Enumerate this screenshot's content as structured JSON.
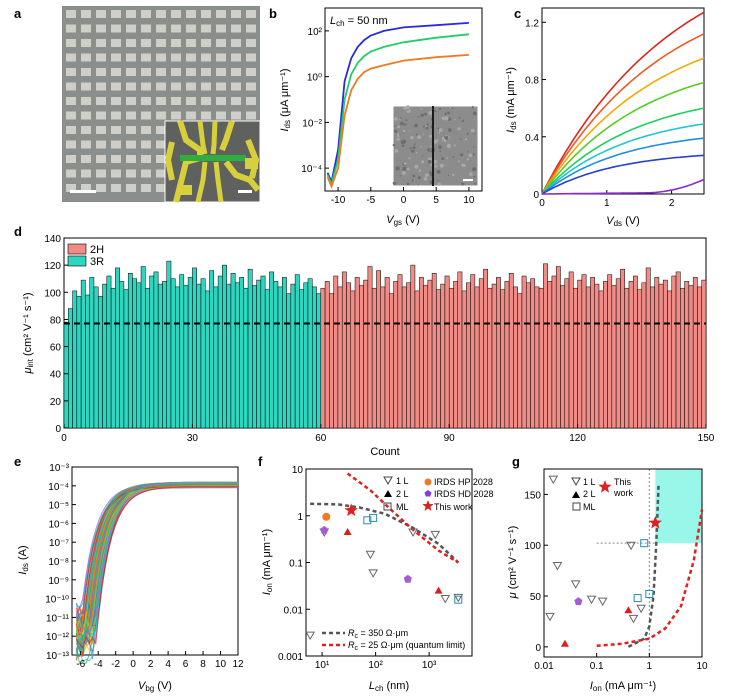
{
  "panels": {
    "a": {
      "label": "a"
    },
    "b": {
      "label": "b",
      "annotation_prefix": "L",
      "annotation_sub": "ch",
      "annotation_suffix": " = 50 nm",
      "xlabel": "V",
      "xlabel_sub": "gs",
      "xlabel_unit": " (V)",
      "ylabel": "I",
      "ylabel_sub": "ds",
      "ylabel_unit": " (μA μm⁻¹)"
    },
    "c": {
      "label": "c",
      "xlabel": "V",
      "xlabel_sub": "ds",
      "xlabel_unit": " (V)",
      "ylabel": "I",
      "ylabel_sub": "ds",
      "ylabel_unit": " (mA μm⁻¹)"
    },
    "d": {
      "label": "d",
      "xlabel": "Count",
      "ylabel": "μ",
      "ylabel_sub": "int",
      "ylabel_unit": " (cm² V⁻¹ s⁻¹)",
      "legend": [
        "2H",
        "3R"
      ]
    },
    "e": {
      "label": "e",
      "xlabel": "V",
      "xlabel_sub": "bg",
      "xlabel_unit": " (V)",
      "ylabel": "I",
      "ylabel_sub": "ds",
      "ylabel_unit": " (A)"
    },
    "f": {
      "label": "f",
      "xlabel": "L",
      "xlabel_sub": "ch",
      "xlabel_unit": " (nm)",
      "ylabel": "I",
      "ylabel_sub": "on",
      "ylabel_unit": " (mA μm⁻¹)",
      "legend": [
        "1 L",
        "2 L",
        "ML",
        "IRDS HP 2028",
        "IRDS HD 2028",
        "This work"
      ],
      "line_legend": [
        {
          "prefix": "R",
          "sub": "c",
          "text": " = 350 Ω·μm"
        },
        {
          "prefix": "R",
          "sub": "c",
          "text": " = 25 Ω·μm (quantum limit)"
        }
      ]
    },
    "g": {
      "label": "g",
      "xlabel": "I",
      "xlabel_sub": "on",
      "xlabel_unit": " (mA μm⁻¹)",
      "ylabel": "μ",
      "ylabel_unit": " (cm² V⁻¹ s⁻¹)",
      "legend": [
        "1 L",
        "2 L",
        "ML",
        "This",
        "work"
      ]
    }
  },
  "chart_data": [
    {
      "panel": "b",
      "type": "line",
      "xlim": [
        -12,
        12
      ],
      "ylim_log10": [
        -5,
        3
      ],
      "y_scale": "log",
      "x_ticks": [
        "-10",
        "-5",
        "0",
        "5",
        "10"
      ],
      "y_ticks": [
        "10⁻⁴",
        "10⁻²",
        "10⁰",
        "10²"
      ],
      "series": [
        {
          "color": "#2b2bd9",
          "points": [
            [
              -11.6,
              -4.2
            ],
            [
              -11,
              -4.6
            ],
            [
              -10,
              -3.2
            ],
            [
              -9,
              -0.2
            ],
            [
              -8,
              0.8
            ],
            [
              -7,
              1.3
            ],
            [
              -6,
              1.6
            ],
            [
              -5,
              1.8
            ],
            [
              -3,
              2.0
            ],
            [
              0,
              2.15
            ],
            [
              5,
              2.25
            ],
            [
              10,
              2.35
            ]
          ]
        },
        {
          "color": "#22cc66",
          "points": [
            [
              -11.6,
              -4.3
            ],
            [
              -11,
              -4.7
            ],
            [
              -10,
              -3.6
            ],
            [
              -9,
              -1.0
            ],
            [
              -8,
              0.1
            ],
            [
              -7,
              0.6
            ],
            [
              -6,
              0.9
            ],
            [
              -5,
              1.1
            ],
            [
              -3,
              1.3
            ],
            [
              0,
              1.5
            ],
            [
              5,
              1.7
            ],
            [
              10,
              1.85
            ]
          ]
        },
        {
          "color": "#f07a20",
          "points": [
            [
              -11.6,
              -4.4
            ],
            [
              -11,
              -4.8
            ],
            [
              -10,
              -4.0
            ],
            [
              -9,
              -1.7
            ],
            [
              -8,
              -0.6
            ],
            [
              -7,
              -0.1
            ],
            [
              -6,
              0.2
            ],
            [
              -5,
              0.35
            ],
            [
              -3,
              0.5
            ],
            [
              0,
              0.7
            ],
            [
              5,
              0.85
            ],
            [
              10,
              0.95
            ]
          ]
        }
      ]
    },
    {
      "panel": "c",
      "type": "line",
      "xlim": [
        0,
        2.5
      ],
      "ylim": [
        0,
        1.3
      ],
      "x_ticks": [
        "0",
        "1",
        "2"
      ],
      "y_ticks": [
        "0",
        "0.4",
        "0.8",
        "1.2"
      ],
      "series_final_values": [
        1.27,
        1.12,
        0.95,
        0.78,
        0.6,
        0.49,
        0.39,
        0.27,
        0.1
      ],
      "series_colors": [
        "#e0241d",
        "#f15a22",
        "#f5a800",
        "#55cc22",
        "#1fcf5a",
        "#22c4d8",
        "#1f90e0",
        "#2a3fd0",
        "#8a2ad0"
      ]
    },
    {
      "panel": "d",
      "type": "bar",
      "xlim": [
        0,
        150
      ],
      "ylim": [
        0,
        140
      ],
      "mean_line": 77,
      "x_ticks": [
        "0",
        "30",
        "60",
        "90",
        "120",
        "150"
      ],
      "y_ticks": [
        "0",
        "20",
        "40",
        "60",
        "80",
        "100",
        "120",
        "140"
      ],
      "series": [
        {
          "name": "3R",
          "color": "#2ed6c0",
          "values": [
            78,
            88,
            101,
            97,
            109,
            98,
            111,
            104,
            97,
            106,
            112,
            103,
            118,
            108,
            102,
            114,
            110,
            107,
            119,
            103,
            112,
            115,
            106,
            108,
            123,
            110,
            104,
            113,
            105,
            111,
            118,
            106,
            110,
            101,
            116,
            104,
            112,
            120,
            106,
            114,
            107,
            111,
            103,
            117,
            105,
            109,
            112,
            102,
            115,
            108,
            104,
            111,
            99,
            106,
            113,
            102,
            107,
            110,
            104,
            99
          ]
        },
        {
          "name": "2H",
          "color": "#f08b86",
          "values": [
            103,
            108,
            99,
            112,
            104,
            115,
            107,
            101,
            111,
            105,
            109,
            119,
            103,
            116,
            104,
            111,
            99,
            108,
            113,
            104,
            107,
            120,
            101,
            111,
            105,
            109,
            114,
            102,
            106,
            112,
            103,
            108,
            115,
            101,
            107,
            113,
            104,
            110,
            117,
            103,
            106,
            111,
            102,
            108,
            114,
            104,
            99,
            112,
            107,
            110,
            104,
            103,
            121,
            108,
            112,
            119,
            105,
            110,
            115,
            103,
            109,
            113,
            104,
            111,
            106,
            101,
            108,
            113,
            105,
            110,
            117,
            103,
            108,
            112,
            102,
            107,
            118,
            104,
            111,
            106,
            109,
            101,
            112,
            115,
            103,
            108,
            105,
            111,
            104,
            109
          ]
        }
      ]
    },
    {
      "panel": "e",
      "type": "line",
      "xlim": [
        -7,
        12
      ],
      "ylim_log10": [
        -13,
        -3
      ],
      "y_scale": "log",
      "x_ticks": [
        "-6",
        "-4",
        "-2",
        "0",
        "2",
        "4",
        "6",
        "8",
        "10",
        "12"
      ],
      "y_ticks": [
        "10⁻¹³",
        "10⁻¹²",
        "10⁻¹¹",
        "10⁻¹⁰",
        "10⁻⁹",
        "10⁻⁸",
        "10⁻⁷",
        "10⁻⁶",
        "10⁻⁵",
        "10⁻⁴",
        "10⁻³"
      ],
      "curve_count": 150,
      "onset_vbg_range": [
        -6,
        -4
      ],
      "on_current_log10": -3.8
    },
    {
      "panel": "f",
      "type": "scatter",
      "x_scale": "log",
      "y_scale": "log",
      "xlim_log10": [
        0.7,
        3.8
      ],
      "ylim_log10": [
        -3,
        1
      ],
      "x_ticks": [
        "10¹",
        "10²",
        "10³"
      ],
      "y_ticks": [
        "0.001",
        "0.01",
        "0.1",
        "1",
        "10"
      ],
      "points": [
        {
          "kind": "1L",
          "x": 11,
          "y": 0.45
        },
        {
          "kind": "1L",
          "x": 6,
          "y": 0.0028
        },
        {
          "kind": "1L",
          "x": 80,
          "y": 0.15
        },
        {
          "kind": "1L",
          "x": 90,
          "y": 0.06
        },
        {
          "kind": "1L",
          "x": 500,
          "y": 0.45
        },
        {
          "kind": "1L",
          "x": 1300,
          "y": 0.4
        },
        {
          "kind": "1L",
          "x": 2000,
          "y": 0.017
        },
        {
          "kind": "1L",
          "x": 3500,
          "y": 0.018
        },
        {
          "kind": "2L",
          "x": 30,
          "y": 0.45
        },
        {
          "kind": "2L",
          "x": 1500,
          "y": 0.025
        },
        {
          "kind": "ML",
          "x": 70,
          "y": 0.8
        },
        {
          "kind": "ML",
          "x": 90,
          "y": 0.9
        },
        {
          "kind": "ML",
          "x": 3500,
          "y": 0.016
        },
        {
          "kind": "IRDS HP 2028",
          "x": 12,
          "y": 0.95
        },
        {
          "kind": "IRDS HD 2028",
          "x": 11,
          "y": 0.5
        },
        {
          "kind": "IRDS HD 2028",
          "x": 400,
          "y": 0.045
        },
        {
          "kind": "This work",
          "x": 35,
          "y": 1.3
        }
      ],
      "fit_lines": [
        {
          "name": "Rc350",
          "color": "#555555",
          "points": [
            [
              6,
              1.8
            ],
            [
              20,
              1.75
            ],
            [
              50,
              1.5
            ],
            [
              150,
              1.1
            ],
            [
              500,
              0.55
            ],
            [
              1500,
              0.25
            ],
            [
              3500,
              0.1
            ]
          ]
        },
        {
          "name": "Rc25",
          "color": "#e02020",
          "points": [
            [
              30,
              8
            ],
            [
              80,
              3.5
            ],
            [
              200,
              1.3
            ],
            [
              500,
              0.5
            ],
            [
              1500,
              0.18
            ],
            [
              3500,
              0.1
            ]
          ]
        }
      ]
    },
    {
      "panel": "g",
      "type": "scatter",
      "x_scale": "log",
      "xlim_log10": [
        -2,
        1
      ],
      "ylim": [
        -10,
        175
      ],
      "x_ticks": [
        "0.01",
        "0.1",
        "1",
        "10"
      ],
      "y_ticks": [
        "0",
        "50",
        "100",
        "150"
      ],
      "points": [
        {
          "kind": "1L",
          "x": 0.013,
          "y": 30
        },
        {
          "kind": "1L",
          "x": 0.015,
          "y": 165
        },
        {
          "kind": "1L",
          "x": 0.018,
          "y": 80
        },
        {
          "kind": "1L",
          "x": 0.04,
          "y": 62
        },
        {
          "kind": "1L",
          "x": 0.08,
          "y": 47
        },
        {
          "kind": "1L",
          "x": 0.13,
          "y": 45
        },
        {
          "kind": "1L",
          "x": 0.45,
          "y": 100
        },
        {
          "kind": "1L",
          "x": 0.5,
          "y": 28
        },
        {
          "kind": "1L",
          "x": 0.7,
          "y": 38
        },
        {
          "kind": "2L",
          "x": 0.025,
          "y": 3
        },
        {
          "kind": "2L",
          "x": 0.4,
          "y": 36
        },
        {
          "kind": "ML",
          "x": 0.6,
          "y": 48
        },
        {
          "kind": "ML",
          "x": 0.8,
          "y": 102
        },
        {
          "kind": "ML",
          "x": 1.0,
          "y": 52
        },
        {
          "kind": "purple",
          "x": 0.045,
          "y": 45
        },
        {
          "kind": "This work",
          "x": 1.3,
          "y": 122
        }
      ],
      "highlight_region": {
        "x_from": 1.3,
        "x_to": 10,
        "y_from": 102,
        "y_to": 175
      },
      "fit_lines": [
        {
          "color": "#555555",
          "points": [
            [
              0.4,
              0
            ],
            [
              0.8,
              8
            ],
            [
              1.0,
              20
            ],
            [
              1.2,
              50
            ],
            [
              1.35,
              100
            ],
            [
              1.5,
              160
            ]
          ]
        },
        {
          "color": "#e02020",
          "points": [
            [
              0.1,
              1
            ],
            [
              0.3,
              3
            ],
            [
              1,
              8
            ],
            [
              2,
              18
            ],
            [
              4,
              40
            ],
            [
              7,
              85
            ],
            [
              10,
              135
            ]
          ]
        }
      ]
    }
  ]
}
